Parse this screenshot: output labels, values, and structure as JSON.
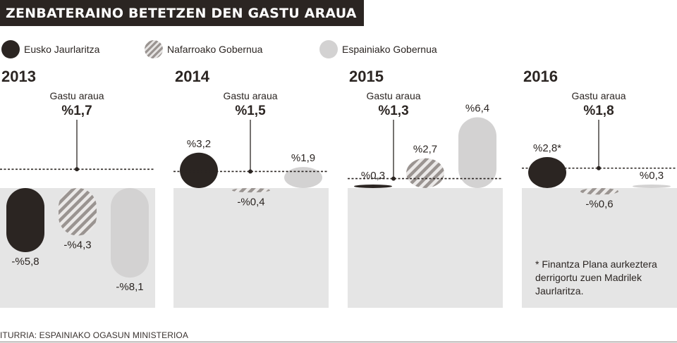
{
  "title": "ZENBATERAINO BETETZEN DEN GASTU ARAUA",
  "legend": [
    {
      "label": "Eusko Jaurlaritza",
      "color": "#2b2522",
      "pattern": "solid"
    },
    {
      "label": "Nafarroako Gobernua",
      "color": "#a09a97",
      "pattern": "striped"
    },
    {
      "label": "Espainiako Gobernua",
      "color": "#d3d2d2",
      "pattern": "solid"
    }
  ],
  "chart_data": {
    "type": "bar",
    "title": "ZENBATERAINO BETETZEN DEN GASTU ARAUA",
    "categories": [
      "2013",
      "2014",
      "2015",
      "2016"
    ],
    "series": [
      {
        "name": "Eusko Jaurlaritza",
        "values": [
          -5.8,
          3.2,
          0.3,
          2.8
        ],
        "labels": [
          "-%5,8",
          "%3,2",
          "%0,3",
          "%2,8*"
        ]
      },
      {
        "name": "Nafarroako Gobernua",
        "values": [
          -4.3,
          -0.4,
          2.7,
          -0.6
        ],
        "labels": [
          "-%4,3",
          "-%0,4",
          "%2,7",
          "-%0,6"
        ]
      },
      {
        "name": "Espainiako Gobernua",
        "values": [
          -8.1,
          1.9,
          6.4,
          0.3
        ],
        "labels": [
          "-%8,1",
          "%1,9",
          "%6,4",
          "%0,3"
        ]
      }
    ],
    "rule": {
      "label": "Gastu araua",
      "values": [
        1.7,
        1.5,
        1.3,
        1.8
      ],
      "value_labels": [
        "%1,7",
        "%1,5",
        "%1,3",
        "%1,8"
      ]
    },
    "footnote": "* Finantza Plana aurkeztera derrigortu zuen Madrilek Jaurlaritza.",
    "footnote_lines": [
      "* Finantza Plana aurkeztera",
      "derrigortu zuen Madrilek",
      "Jaurlaritza."
    ]
  },
  "source": "ITURRIA: ESPAINIAKO OGASUN MINISTERIOA"
}
